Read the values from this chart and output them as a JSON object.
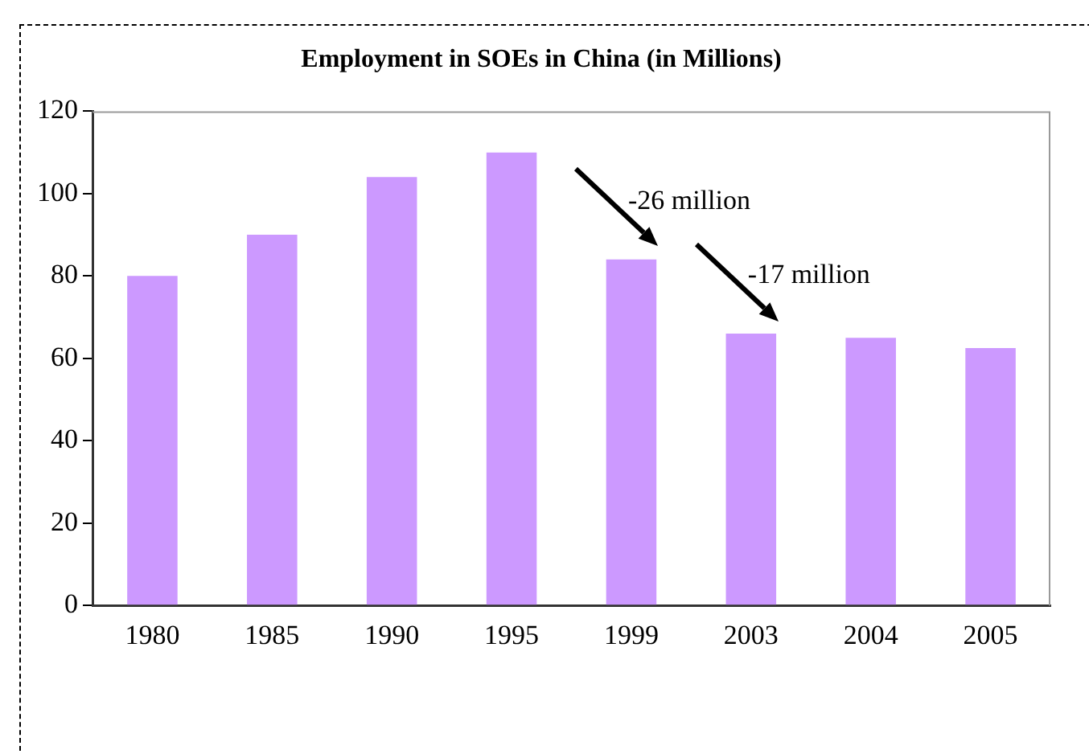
{
  "chart_data": {
    "type": "bar",
    "title": "Employment in SOEs in China (in Millions)",
    "categories": [
      "1980",
      "1985",
      "1990",
      "1995",
      "1999",
      "2003",
      "2004",
      "2005"
    ],
    "values": [
      80,
      90,
      104,
      110,
      84,
      66,
      65,
      62.5
    ],
    "color": "#cc99ff",
    "ylim": [
      0,
      120
    ],
    "yticks": [
      0,
      20,
      40,
      60,
      80,
      100,
      120
    ],
    "grid": false,
    "legend": false,
    "annotations": [
      {
        "text": "-26 million",
        "x": "1999",
        "y": 84
      },
      {
        "text": "-17 million",
        "x": "2003",
        "y": 66
      }
    ]
  }
}
